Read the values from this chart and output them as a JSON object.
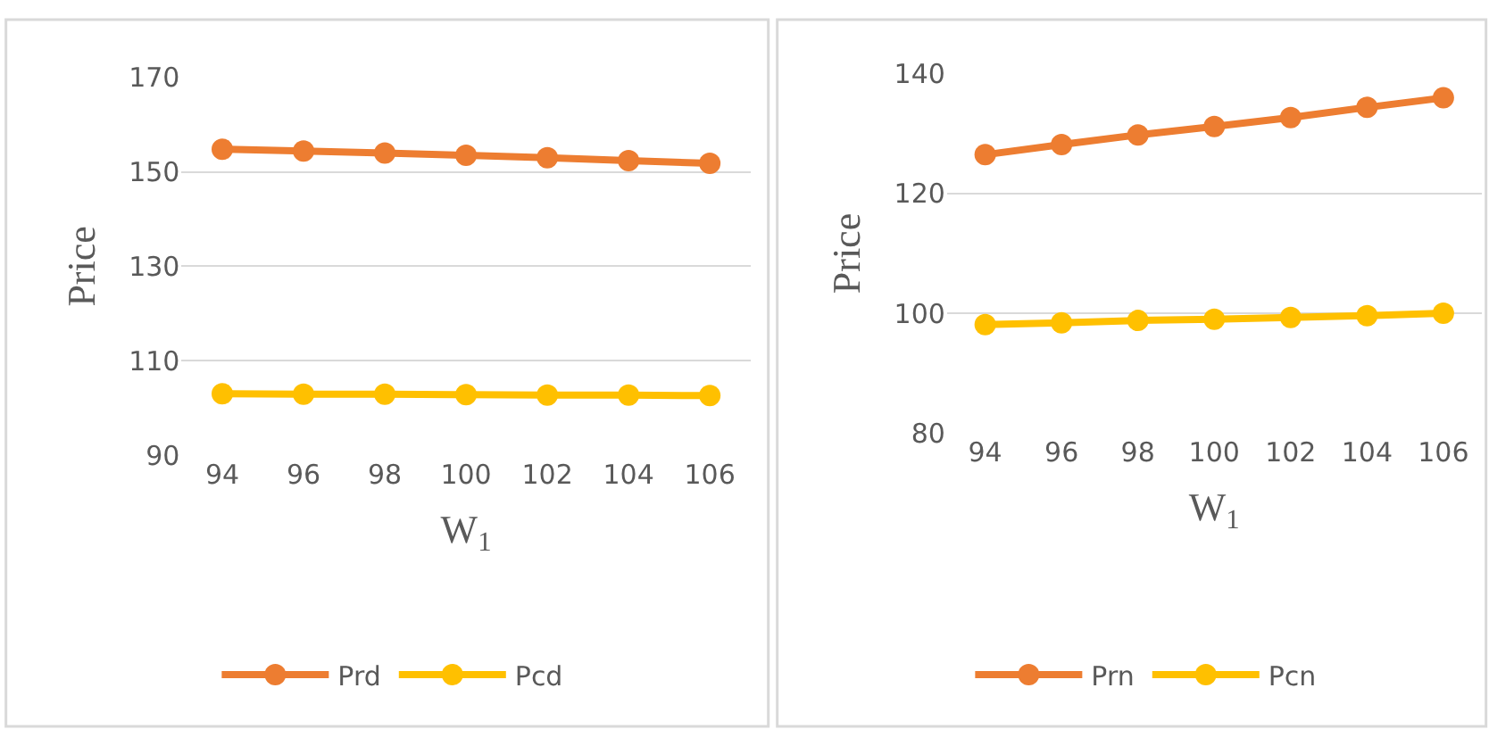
{
  "chart_data": [
    {
      "type": "line",
      "xlabel": "W$_{1}$",
      "ylabel": "Price",
      "categories": [
        "94",
        "96",
        "98",
        "100",
        "102",
        "104",
        "106"
      ],
      "series": [
        {
          "name": "Prd",
          "color": "#ed7d31",
          "values": [
            154.8,
            154.4,
            154.0,
            153.5,
            153.0,
            152.4,
            151.8
          ]
        },
        {
          "name": "Pcd",
          "color": "#ffc000",
          "values": [
            103.0,
            102.9,
            102.9,
            102.8,
            102.7,
            102.7,
            102.6
          ]
        }
      ],
      "ylim": [
        90,
        170
      ],
      "yticks": [
        90,
        110,
        130,
        150,
        170
      ],
      "grid": "y",
      "legend": "bottom",
      "marker": "circle",
      "line_style": "solid"
    },
    {
      "type": "line",
      "xlabel": "W$_{1}$",
      "ylabel": "Price",
      "categories": [
        "94",
        "96",
        "98",
        "100",
        "102",
        "104",
        "106"
      ],
      "series": [
        {
          "name": "Prn",
          "color": "#ed7d31",
          "values": [
            126.5,
            128.2,
            129.8,
            131.2,
            132.7,
            134.4,
            136.0
          ]
        },
        {
          "name": "Pcn",
          "color": "#ffc000",
          "values": [
            98.1,
            98.4,
            98.8,
            99.0,
            99.3,
            99.6,
            100.0
          ]
        }
      ],
      "ylim": [
        80,
        140
      ],
      "yticks": [
        80,
        100,
        120,
        140
      ],
      "grid": "y",
      "legend": "bottom",
      "marker": "circle",
      "line_style": "solid"
    }
  ]
}
